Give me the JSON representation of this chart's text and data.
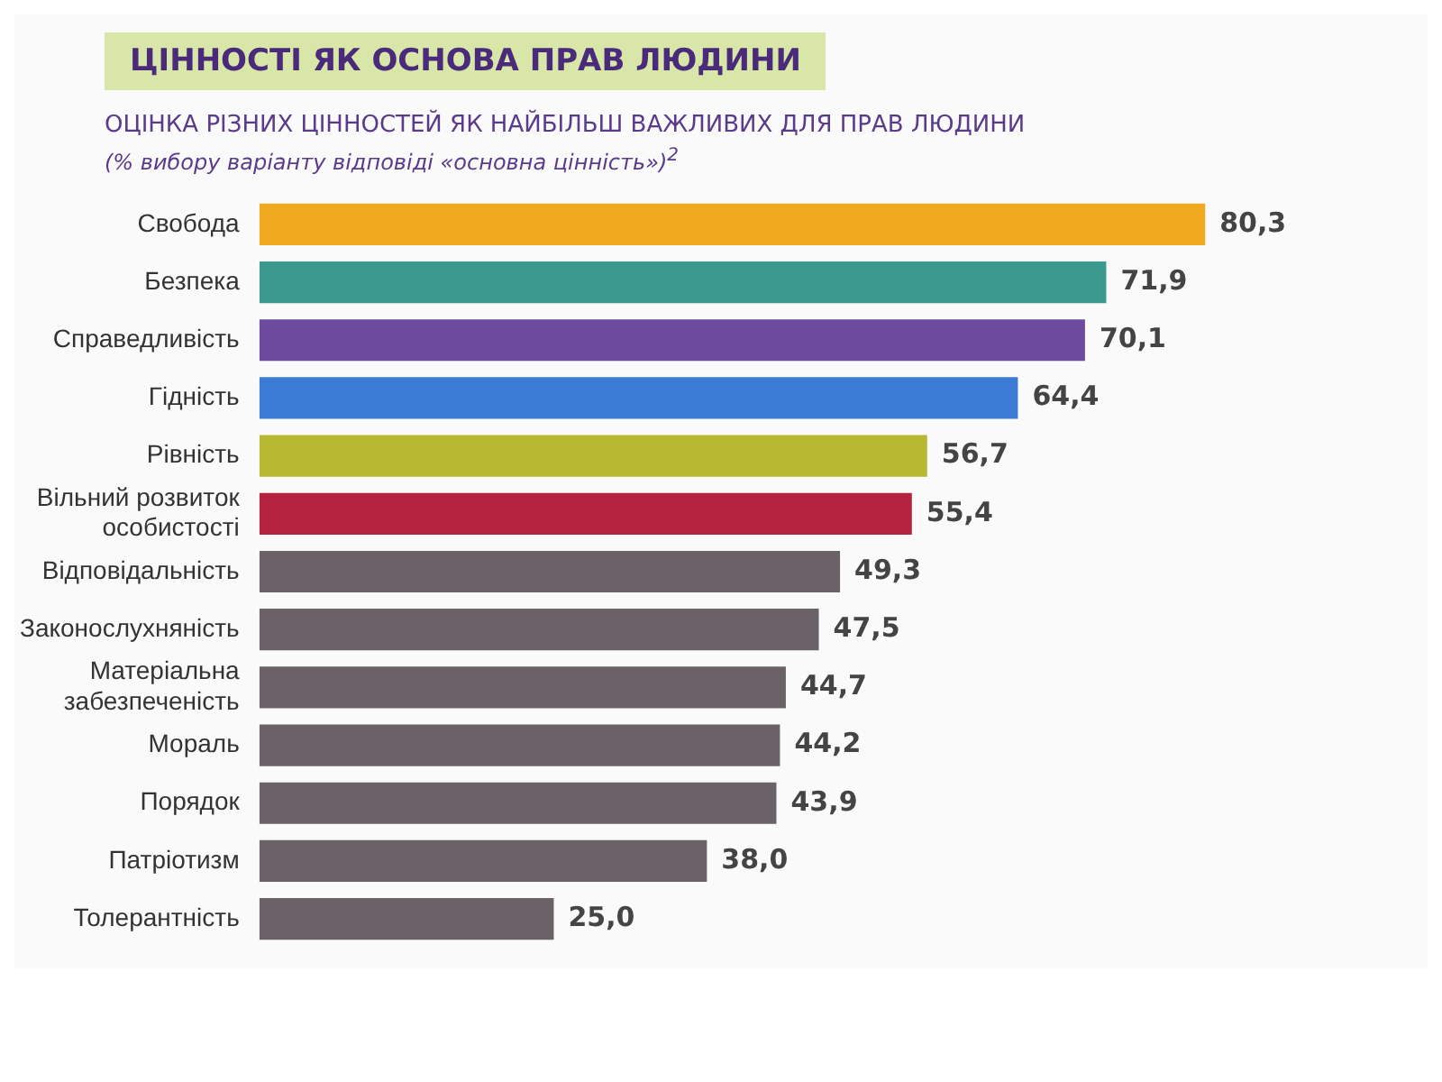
{
  "chart_data": {
    "type": "bar",
    "orientation": "horizontal",
    "title": "ЦІННОСТІ ЯК ОСНОВА ПРАВ ЛЮДИНИ",
    "subtitle": "ОЦІНКА РІЗНИХ ЦІННОСТЕЙ ЯК НАЙБІЛЬШ ВАЖЛИВИХ ДЛЯ ПРАВ ЛЮДИНИ",
    "annotations": [
      "(% вибору варіанту відповіді «основна цінність»)$^{2}$"
    ],
    "categories": [
      "Свобода",
      "Безпека",
      "Справедливість",
      "Гідність",
      "Рівність",
      "Вільний розвиток особистості",
      "Відповідальність",
      "Законослухняність",
      "Матеріальна забезпеченість",
      "Мораль",
      "Порядок",
      "Патріотизм",
      "Толерантність"
    ],
    "values": [
      80.3,
      71.9,
      70.1,
      64.4,
      56.7,
      55.4,
      49.3,
      47.5,
      44.7,
      44.2,
      43.9,
      38.0,
      25.0
    ],
    "value_labels": [
      "80,3",
      "71,9",
      "70,1",
      "64,4",
      "56,7",
      "55,4",
      "49,3",
      "47,5",
      "44,7",
      "44,2",
      "43,9",
      "38,0",
      "25,0"
    ],
    "colors": [
      "#f0a81e",
      "#3a9a8e",
      "#6d4a9e",
      "#3b7bd4",
      "#b9b832",
      "#b3223f",
      "#6b6268",
      "#6b6268",
      "#6b6268",
      "#6b6268",
      "#6b6268",
      "#6b6268",
      "#6b6268"
    ],
    "data_labels": false
  }
}
